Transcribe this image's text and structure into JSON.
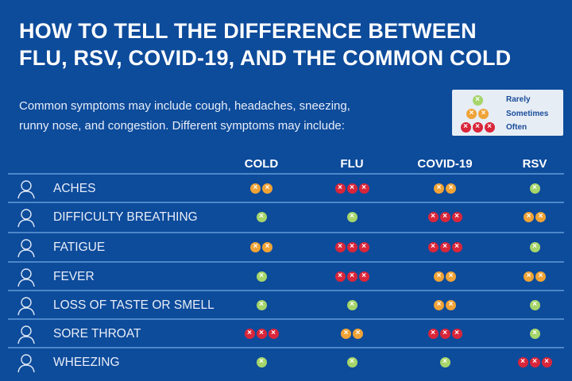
{
  "title": [
    "HOW TO TELL THE DIFFERENCE BETWEEN",
    "FLU, RSV, COVID-19, AND THE COMMON COLD"
  ],
  "intro": [
    "Common symptoms may include cough, headaches, sneezing,",
    "runny nose, and congestion. Different symptoms may include:"
  ],
  "legend": [
    {
      "label": "Rarely",
      "level": 1
    },
    {
      "label": "Sometimes",
      "level": 2
    },
    {
      "label": "Often",
      "level": 3
    }
  ],
  "colors": {
    "background": "#0d4b9b",
    "rarely": "#a6d56a",
    "sometimes": "#f0a336",
    "often": "#d9263a",
    "divider": "#4d87c9"
  },
  "columns": [
    "COLD",
    "FLU",
    "COVID-19",
    "RSV"
  ],
  "rows": [
    {
      "symptom": "ACHES",
      "icon": "aches-icon",
      "levels": [
        2,
        3,
        2,
        1
      ]
    },
    {
      "symptom": "DIFFICULTY BREATHING",
      "icon": "difficulty-breathing-icon",
      "levels": [
        1,
        1,
        3,
        2
      ]
    },
    {
      "symptom": "FATIGUE",
      "icon": "fatigue-icon",
      "levels": [
        2,
        3,
        3,
        1
      ]
    },
    {
      "symptom": "FEVER",
      "icon": "fever-icon",
      "levels": [
        1,
        3,
        2,
        2
      ]
    },
    {
      "symptom": "LOSS OF TASTE OR SMELL",
      "icon": "loss-of-taste-smell-icon",
      "levels": [
        1,
        1,
        2,
        1
      ]
    },
    {
      "symptom": "SORE THROAT",
      "icon": "sore-throat-icon",
      "levels": [
        3,
        2,
        3,
        1
      ]
    },
    {
      "symptom": "WHEEZING",
      "icon": "wheezing-icon",
      "levels": [
        1,
        1,
        1,
        3
      ]
    }
  ]
}
